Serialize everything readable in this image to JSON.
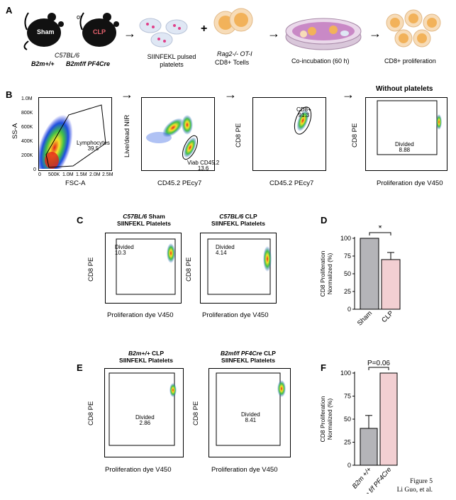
{
  "panels": {
    "A": "A",
    "B": "B",
    "C": "C",
    "D": "D",
    "E": "E",
    "F": "F"
  },
  "panel_a": {
    "mouse_sham": "Sham",
    "mouse_clp": "CLP",
    "or_text": "or",
    "strain": "C57BL/6",
    "genotype_wt": "B2m+/+",
    "genotype_cre": "B2mf/f PF4Cre",
    "platelets": "SIINFEKL pulsed platelets",
    "plus": "+",
    "tcells_strain": "Rag2-/- OT-I",
    "tcells_label": "CD8+ Tcells",
    "coinc": "Co-incubation (60 h)",
    "prolif": "CD8+ proliferation",
    "arrow": "→"
  },
  "panel_b": {
    "p1": {
      "y": "SS-A",
      "x": "FSC-A",
      "gate": "Lymphocytes",
      "value": "39.5",
      "yticks": [
        "1.0M",
        "800K",
        "600K",
        "400K",
        "200K",
        "0"
      ],
      "xticks": [
        "0",
        "500K",
        "1.0M",
        "1.5M",
        "2.0M",
        "2.5M"
      ]
    },
    "p2": {
      "y": "Live/dead NIR",
      "x": "CD45.2 PEcy7",
      "gate": "Viab CD45.2",
      "value": "13.6"
    },
    "p3": {
      "y": "CD8 PE",
      "x": "CD45.2 PEcy7",
      "gate": "CD8+",
      "value": "91.3"
    },
    "p4": {
      "title": "Without platelets",
      "y": "CD8 PE",
      "x": "Proliferation dye V450",
      "gate": "Divided",
      "value": "8.88"
    }
  },
  "panel_c": {
    "left": {
      "title_it": "C57BL/6",
      "title_rest": " Sham",
      "title2": "SIINFEKL Platelets",
      "y": "CD8 PE",
      "x": "Proliferation dye V450",
      "gate": "Divided",
      "value": "10.3"
    },
    "right": {
      "title_it": "C57BL/6",
      "title_rest": " CLP",
      "title2": "SIINFEKL Platelets",
      "y": "CD8 PE",
      "x": "Proliferation dye V450",
      "gate": "Divided",
      "value": "4.14"
    }
  },
  "panel_e": {
    "left": {
      "title_it": "B2m+/+",
      "title_rest": " CLP",
      "title2": "SIINFEKL Platelets",
      "y": "CD8 PE",
      "x": "Proliferation dye V450",
      "gate": "Divided",
      "value": "2.86"
    },
    "right": {
      "title_it": "B2mf/f PF4Cre",
      "title_rest": " CLP",
      "title2": "SIINFEKL Platelets",
      "y": "CD8 PE",
      "x": "Proliferation dye V450",
      "gate": "Divided",
      "value": "8.41"
    }
  },
  "chart_data": [
    {
      "type": "bar",
      "panel": "D",
      "categories": [
        "Sham",
        "CLP"
      ],
      "values": [
        100,
        70
      ],
      "errors": [
        0,
        10
      ],
      "colors": [
        "#b4b4b8",
        "#f2cfd2"
      ],
      "ylabel": "CD8 Proliferation Normalized (%)",
      "ylim": [
        0,
        100
      ],
      "yticks": [
        "0",
        "25",
        "50",
        "75",
        "100"
      ],
      "annotation": "*"
    },
    {
      "type": "bar",
      "panel": "F",
      "categories": [
        "B2m +/+",
        "B2m f/f PF4Cre"
      ],
      "values": [
        40,
        100
      ],
      "errors": [
        14,
        0
      ],
      "colors": [
        "#b4b4b8",
        "#f2cfd2"
      ],
      "ylabel": "CD8 Proliferation Normalized (%)",
      "ylim": [
        0,
        100
      ],
      "yticks": [
        "0",
        "25",
        "50",
        "75",
        "100"
      ],
      "annotation": "P=0.06"
    }
  ],
  "footer": {
    "line1": "Figure 5",
    "line2": "Li Guo, et al."
  }
}
